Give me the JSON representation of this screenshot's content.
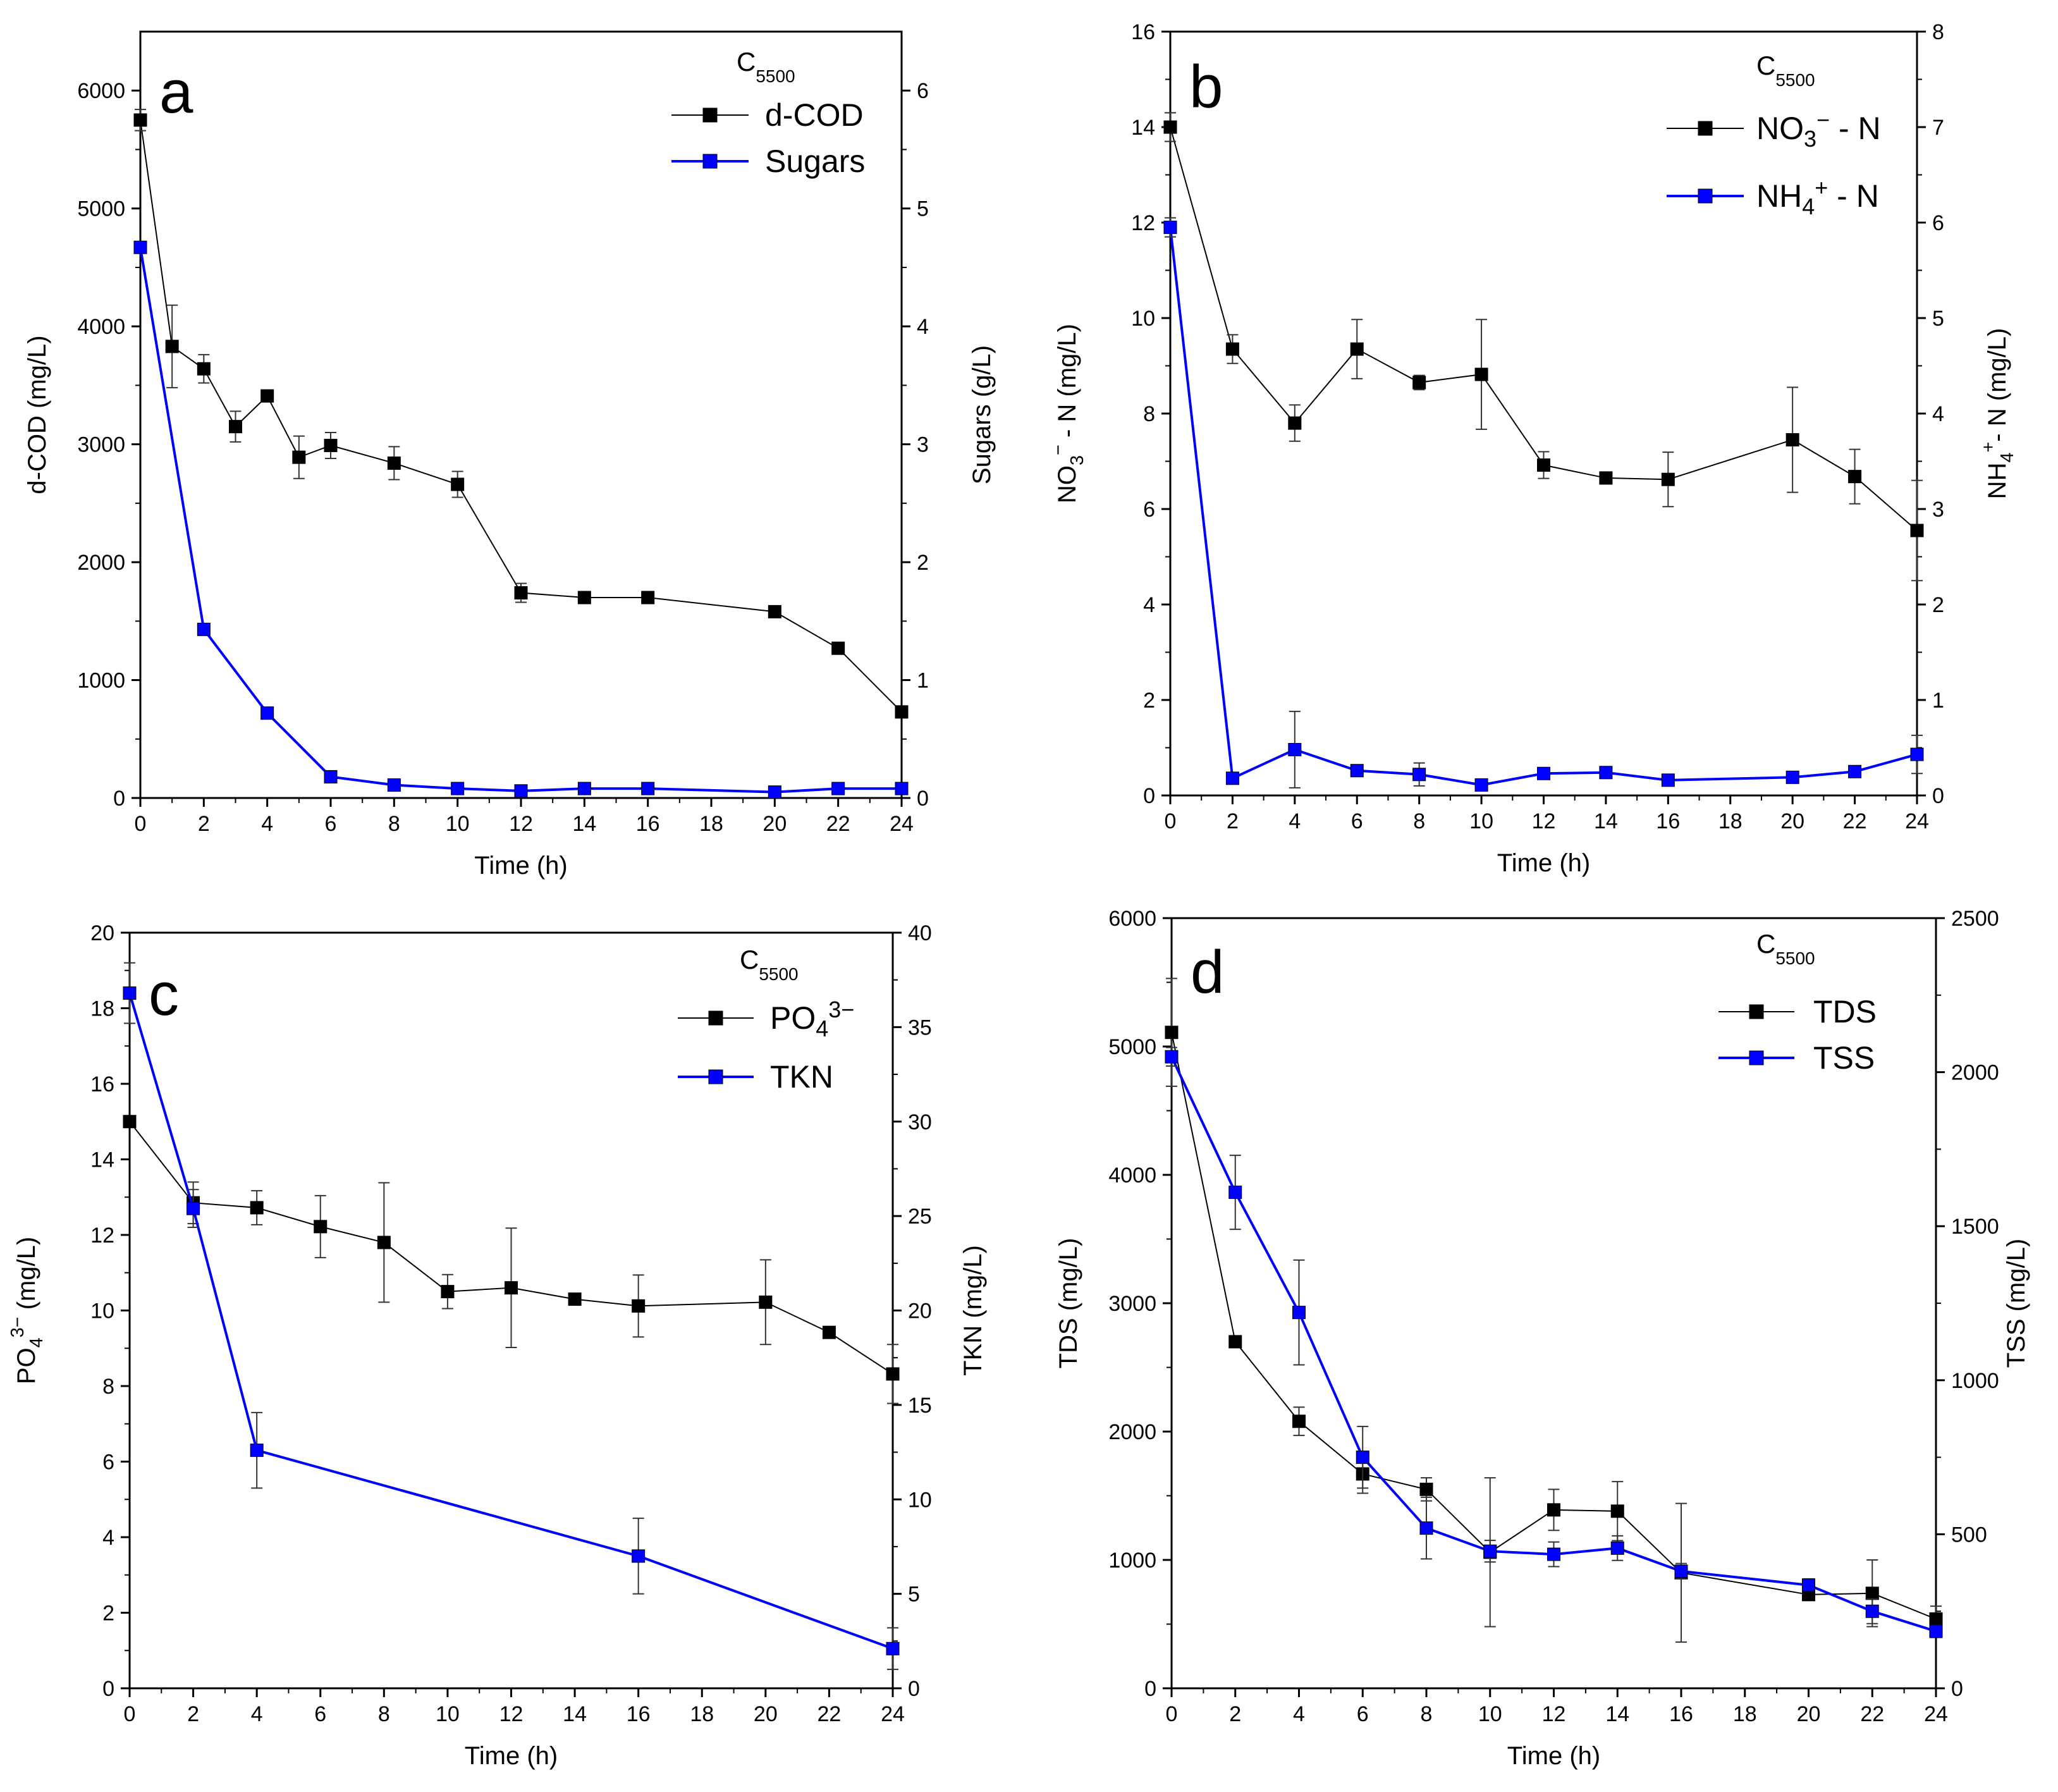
{
  "chart_data": [
    {
      "type": "line",
      "panel": "a",
      "sample": {
        "main": "C",
        "sub": "5500"
      },
      "xlabel": "Time (h)",
      "xlim": [
        0,
        24
      ],
      "xticks": [
        0,
        2,
        4,
        6,
        8,
        10,
        12,
        14,
        16,
        18,
        20,
        22,
        24
      ],
      "ylabel_left": "d-COD (mg/L)",
      "ylim_left": [
        0,
        6500
      ],
      "yticks_left": [
        0,
        1000,
        2000,
        3000,
        4000,
        5000,
        6000
      ],
      "ylabel_right": "Sugars (g/L)",
      "ylim_right": [
        0,
        6.5
      ],
      "yticks_right": [
        0,
        1,
        2,
        3,
        4,
        5,
        6
      ],
      "legend_position": "top-right",
      "series": [
        {
          "name": "d-COD",
          "axis": "left",
          "color": "#000000",
          "x": [
            0,
            1,
            2,
            3,
            4,
            5,
            6,
            8,
            10,
            12,
            14,
            16,
            20,
            22,
            24
          ],
          "values": [
            5750,
            3830,
            3640,
            3150,
            3410,
            2890,
            2990,
            2840,
            2660,
            1740,
            1700,
            1700,
            1580,
            1270,
            730
          ],
          "errors": [
            90,
            350,
            120,
            130,
            25,
            180,
            110,
            140,
            110,
            80,
            20,
            20,
            20,
            20,
            20
          ]
        },
        {
          "name": "Sugars",
          "axis": "right",
          "color": "#0000ff",
          "x": [
            0,
            2,
            4,
            6,
            8,
            10,
            12,
            14,
            16,
            20,
            22,
            24
          ],
          "values": [
            4.67,
            1.43,
            0.72,
            0.18,
            0.11,
            0.08,
            0.06,
            0.08,
            0.08,
            0.05,
            0.08,
            0.08
          ],
          "errors": [
            0.05,
            0.03,
            0.04,
            0.02,
            0.02,
            0.02,
            0.02,
            0.02,
            0.02,
            0.02,
            0.02,
            0.02
          ]
        }
      ]
    },
    {
      "type": "line",
      "panel": "b",
      "sample": {
        "main": "C",
        "sub": "5500"
      },
      "xlabel": "Time (h)",
      "xlim": [
        0,
        24
      ],
      "xticks": [
        0,
        2,
        4,
        6,
        8,
        10,
        12,
        14,
        16,
        18,
        20,
        22,
        24
      ],
      "ylabel_left": {
        "a": "NO",
        "sub": "3",
        "sup": "−",
        "b": " - N (mg/L)"
      },
      "ylim_left": [
        0,
        16
      ],
      "yticks_left": [
        0,
        2,
        4,
        6,
        8,
        10,
        12,
        14,
        16
      ],
      "ylabel_right": {
        "a": "NH",
        "sub": "4",
        "sup": "+",
        "b": "- N (mg/L)"
      },
      "ylim_right": [
        0,
        8
      ],
      "yticks_right": [
        0,
        1,
        2,
        3,
        4,
        5,
        6,
        7,
        8
      ],
      "legend_position": "top-right",
      "series": [
        {
          "name": "NO3- - N",
          "label": {
            "a": "NO",
            "sub": "3",
            "sup": "−",
            "b": " - N"
          },
          "axis": "left",
          "color": "#000000",
          "x": [
            0,
            2,
            4,
            6,
            8,
            10,
            12,
            14,
            16,
            20,
            22,
            24
          ],
          "values": [
            14.0,
            9.35,
            7.8,
            9.35,
            8.65,
            8.82,
            6.92,
            6.65,
            6.62,
            7.45,
            6.68,
            5.55
          ],
          "errors": [
            0.3,
            0.3,
            0.38,
            0.62,
            0.15,
            1.15,
            0.28,
            0.05,
            0.57,
            1.1,
            0.57,
            1.05
          ]
        },
        {
          "name": "NH4+ - N",
          "label": {
            "a": "NH",
            "sub": "4",
            "sup": "+",
            "b": " - N"
          },
          "axis": "right",
          "color": "#0000ff",
          "x": [
            0,
            2,
            4,
            6,
            8,
            10,
            12,
            14,
            16,
            20,
            22,
            24
          ],
          "values": [
            5.95,
            0.18,
            0.48,
            0.26,
            0.22,
            0.11,
            0.23,
            0.24,
            0.16,
            0.19,
            0.25,
            0.43
          ],
          "errors": [
            0.1,
            0.05,
            0.4,
            0.06,
            0.12,
            0.04,
            0.06,
            0.04,
            0.04,
            0.04,
            0.04,
            0.2
          ]
        }
      ]
    },
    {
      "type": "line",
      "panel": "c",
      "sample": {
        "main": "C",
        "sub": "5500"
      },
      "xlabel": "Time (h)",
      "xlim": [
        0,
        24
      ],
      "xticks": [
        0,
        2,
        4,
        6,
        8,
        10,
        12,
        14,
        16,
        18,
        20,
        22,
        24
      ],
      "ylabel_left": {
        "a": "PO",
        "sub": "4",
        "sup": "3−",
        "b": " (mg/L)"
      },
      "ylim_left": [
        0,
        20
      ],
      "yticks_left": [
        0,
        2,
        4,
        6,
        8,
        10,
        12,
        14,
        16,
        18,
        20
      ],
      "ylabel_right": "TKN (mg/L)",
      "ylim_right": [
        0,
        40
      ],
      "yticks_right": [
        0,
        5,
        10,
        15,
        20,
        25,
        30,
        35,
        40
      ],
      "legend_position": "top-right",
      "series": [
        {
          "name": "PO4 3-",
          "label": {
            "a": "PO",
            "sub": "4",
            "sup": "3−",
            "b": ""
          },
          "axis": "left",
          "color": "#000000",
          "x": [
            0,
            2,
            4,
            6,
            8,
            10,
            12,
            14,
            16,
            20,
            22,
            24
          ],
          "values": [
            15.0,
            12.85,
            12.72,
            12.22,
            11.8,
            10.5,
            10.6,
            10.3,
            10.12,
            10.22,
            9.42,
            8.32
          ],
          "errors": [
            0.1,
            0.55,
            0.45,
            0.82,
            1.58,
            0.45,
            1.58,
            0.08,
            0.82,
            1.12,
            0.08,
            0.78
          ]
        },
        {
          "name": "TKN",
          "label": {
            "a": "TKN",
            "sub": "",
            "sup": "",
            "b": ""
          },
          "axis": "right",
          "color": "#0000ff",
          "x": [
            0,
            2,
            4,
            16,
            24
          ],
          "values": [
            36.8,
            25.4,
            12.6,
            7.0,
            2.1
          ],
          "errors": [
            1.6,
            1.0,
            2.0,
            2.0,
            1.1
          ]
        }
      ]
    },
    {
      "type": "line",
      "panel": "d",
      "sample": {
        "main": "C",
        "sub": "5500"
      },
      "xlabel": "Time (h)",
      "xlim": [
        0,
        24
      ],
      "xticks": [
        0,
        2,
        4,
        6,
        8,
        10,
        12,
        14,
        16,
        18,
        20,
        22,
        24
      ],
      "ylabel_left": "TDS (mg/L)",
      "ylim_left": [
        0,
        6000
      ],
      "yticks_left": [
        0,
        1000,
        2000,
        3000,
        4000,
        5000,
        6000
      ],
      "ylabel_right": "TSS (mg/L)",
      "ylim_right": [
        0,
        2500
      ],
      "yticks_right": [
        0,
        500,
        1000,
        1500,
        2000,
        2500
      ],
      "legend_position": "top-right",
      "series": [
        {
          "name": "TDS",
          "axis": "left",
          "color": "#000000",
          "x": [
            0,
            2,
            4,
            6,
            8,
            10,
            12,
            14,
            16,
            20,
            22,
            24
          ],
          "values": [
            5110,
            2700,
            2080,
            1670,
            1550,
            1060,
            1390,
            1380,
            900,
            730,
            740,
            540
          ],
          "errors": [
            420,
            30,
            110,
            150,
            90,
            580,
            160,
            230,
            540,
            40,
            260,
            100
          ]
        },
        {
          "name": "TSS",
          "axis": "right",
          "color": "#0000ff",
          "x": [
            0,
            2,
            4,
            6,
            8,
            10,
            12,
            14,
            16,
            20,
            22,
            24
          ],
          "values": [
            2050,
            1610,
            1220,
            750,
            520,
            445,
            435,
            455,
            380,
            335,
            250,
            185
          ],
          "errors": [
            30,
            120,
            170,
            100,
            100,
            35,
            40,
            40,
            25,
            20,
            40,
            20
          ]
        }
      ]
    }
  ]
}
